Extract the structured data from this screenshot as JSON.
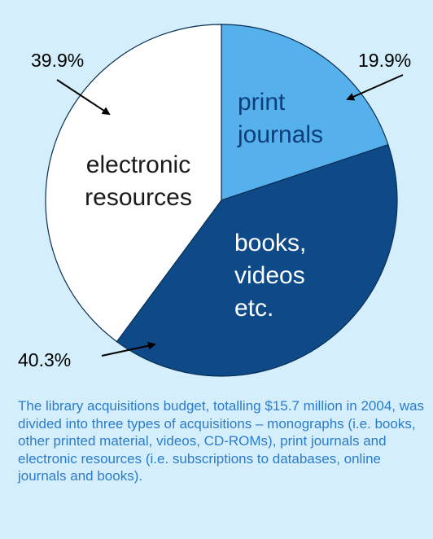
{
  "chart_data": {
    "type": "pie",
    "slices": [
      {
        "label": "print journals",
        "label_lines": [
          "print",
          "journals"
        ],
        "value": 19.9,
        "value_label": "19.9%",
        "color": "#56b0ec",
        "text_color": "#0d3f7a"
      },
      {
        "label": "books, videos etc.",
        "label_lines": [
          "books,",
          "videos",
          "etc."
        ],
        "value": 40.3,
        "value_label": "40.3%",
        "color": "#0d4a87",
        "text_color": "#ffffff"
      },
      {
        "label": "electronic resources",
        "label_lines": [
          "electronic",
          "resources"
        ],
        "value": 39.9,
        "value_label": "39.9%",
        "color": "#ffffff",
        "text_color": "#1a1a1a"
      }
    ],
    "start_angle_deg": 0,
    "direction": "clockwise",
    "outline_color": "#0a2f55"
  },
  "caption": "The library acquisitions budget, totalling $15.7 million in 2004, was divided into three types of acquisitions – monographs (i.e. books, other printed material, videos, CD-ROMs), print journals and electronic resources (i.e. subscriptions to databases, online journals and books).",
  "colors": {
    "background": "#d4eefb",
    "caption_text": "#2b7ccc"
  }
}
